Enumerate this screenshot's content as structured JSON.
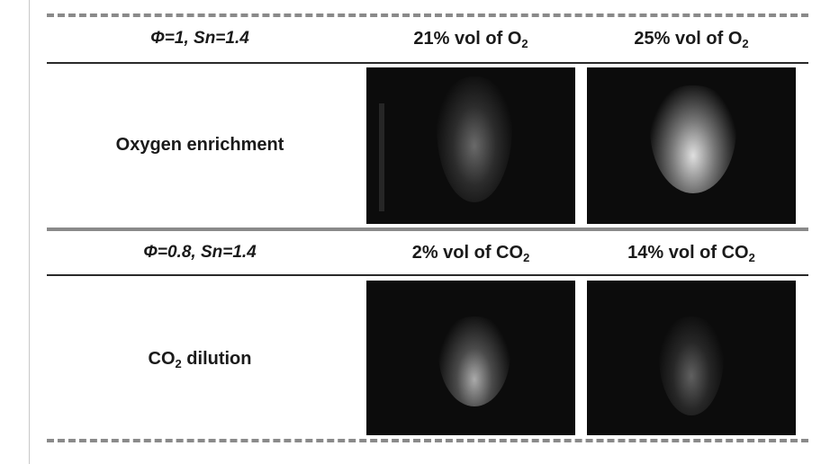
{
  "rows": [
    {
      "params": "Φ=1, Sn=1.4",
      "label": "Oxygen enrichment",
      "label_prefix": "",
      "label_sub": "",
      "label_suffix": "",
      "conditions": [
        {
          "prefix": "21% vol of O",
          "sub": "2"
        },
        {
          "prefix": "25% vol of O",
          "sub": "2"
        }
      ]
    },
    {
      "params": "Φ=0.8, Sn=1.4",
      "label": "",
      "label_prefix": "CO",
      "label_sub": "2",
      "label_suffix": " dilution",
      "conditions": [
        {
          "prefix": "2% vol of CO",
          "sub": "2"
        },
        {
          "prefix": "14% vol of CO",
          "sub": "2"
        }
      ]
    }
  ],
  "colors": {
    "image_background": "#0c0c0c",
    "flame": "#e8e8e8",
    "dashed_rule": "#8a8a8a"
  }
}
